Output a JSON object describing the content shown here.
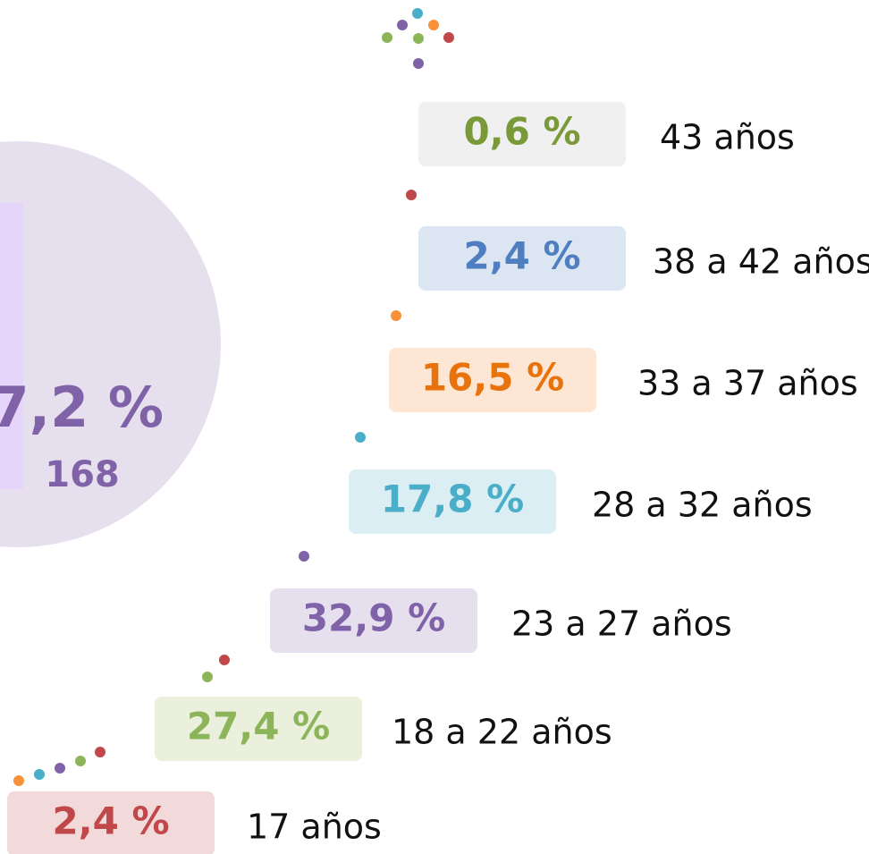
{
  "highlight": {
    "percent": "7,2 %",
    "count": "168"
  },
  "groups": [
    {
      "percent": "0,6 %",
      "age": "43 años"
    },
    {
      "percent": "2,4 %",
      "age": "38 a 42 años"
    },
    {
      "percent": "16,5 %",
      "age": "33 a 37 años"
    },
    {
      "percent": "17,8 %",
      "age": "28 a 32 años"
    },
    {
      "percent": "32,9 %",
      "age": "23 a 27 años"
    },
    {
      "percent": "27,4 %",
      "age": "18 a 22 años"
    },
    {
      "percent": "2,4 %",
      "age": "17 años"
    }
  ]
}
